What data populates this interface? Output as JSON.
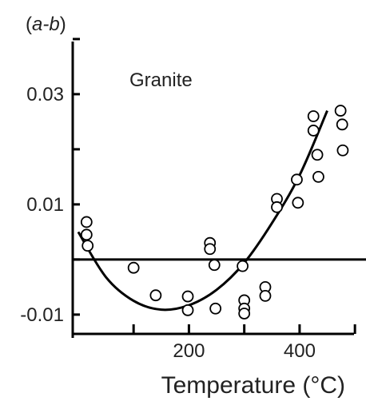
{
  "chart_data": {
    "type": "scatter",
    "title": "",
    "ylabel_parts": [
      "(",
      "a-b",
      ")"
    ],
    "xlabel": "Temperature (°C)",
    "annotation": "Granite",
    "xlim": [
      -10,
      520
    ],
    "ylim": [
      -0.0135,
      0.041
    ],
    "x_ticks": [
      100,
      200,
      300,
      400,
      500
    ],
    "x_tick_labels": [
      "200",
      "400"
    ],
    "x_tick_label_values": [
      200,
      400
    ],
    "y_ticks": [
      -0.01,
      0.0,
      0.01,
      0.02,
      0.03,
      0.04
    ],
    "y_tick_labels": [
      "-0.01",
      "0.01",
      "0.03"
    ],
    "y_tick_label_values": [
      -0.01,
      0.01,
      0.03
    ],
    "reference_line_y": 0.0,
    "series": [
      {
        "marker": "circle",
        "points": [
          [
            15,
            0.0068
          ],
          [
            15,
            0.0045
          ],
          [
            17,
            0.0025
          ],
          [
            100,
            -0.0015
          ],
          [
            140,
            -0.0065
          ],
          [
            198,
            -0.0067
          ],
          [
            198,
            -0.0092
          ],
          [
            238,
            0.003
          ],
          [
            238,
            0.0019
          ],
          [
            246,
            -0.001
          ],
          [
            248,
            -0.0089
          ],
          [
            297,
            -0.0012
          ],
          [
            300,
            -0.0074
          ],
          [
            300,
            -0.0089
          ],
          [
            300,
            -0.0098
          ],
          [
            338,
            -0.005
          ],
          [
            338,
            -0.0066
          ],
          [
            359,
            0.011
          ],
          [
            359,
            0.0095
          ],
          [
            395,
            0.0145
          ],
          [
            397,
            0.0103
          ],
          [
            425,
            0.026
          ],
          [
            425,
            0.0234
          ],
          [
            432,
            0.019
          ],
          [
            434,
            0.015
          ],
          [
            474,
            0.027
          ],
          [
            477,
            0.0245
          ],
          [
            478,
            0.0198
          ]
        ]
      }
    ],
    "fit_curve": [
      [
        0,
        0.005
      ],
      [
        50,
        -0.0032
      ],
      [
        100,
        -0.0075
      ],
      [
        150,
        -0.0091
      ],
      [
        200,
        -0.0083
      ],
      [
        250,
        -0.0055
      ],
      [
        300,
        -0.0006
      ],
      [
        350,
        0.0066
      ],
      [
        400,
        0.0153
      ],
      [
        450,
        0.027
      ]
    ],
    "colors": {
      "ink": "#000000",
      "background": "#ffffff"
    }
  }
}
